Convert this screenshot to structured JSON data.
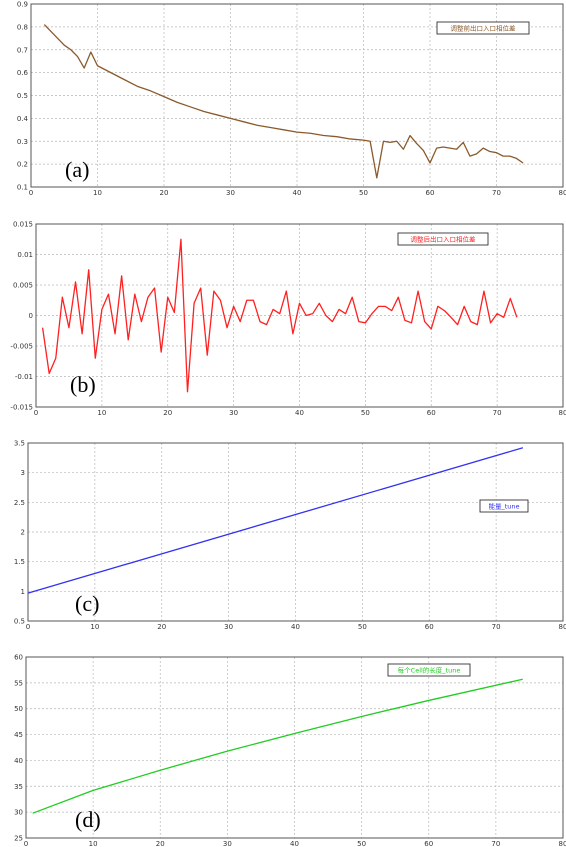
{
  "chart_data": [
    {
      "type": "line",
      "panel_label": "(a)",
      "legend": "调整前出口入口相位差",
      "legend_placement": "top-right",
      "xlim": [
        0,
        80
      ],
      "ylim": [
        0.1,
        0.9
      ],
      "xticks": [
        0,
        10,
        20,
        30,
        40,
        50,
        60,
        70,
        80
      ],
      "yticks": [
        0.1,
        0.2,
        0.3,
        0.4,
        0.5,
        0.6,
        0.7,
        0.8,
        0.9
      ],
      "grid": true,
      "color": "#8b5a2b",
      "series": [
        {
          "x": [
            2,
            3,
            4,
            5,
            6,
            7,
            8,
            9,
            10,
            12,
            14,
            16,
            18,
            20,
            22,
            24,
            26,
            28,
            30,
            32,
            34,
            36,
            38,
            40,
            42,
            44,
            46,
            48,
            50,
            51,
            52,
            53,
            54,
            55,
            56,
            57,
            58,
            59,
            60,
            61,
            62,
            63,
            64,
            65,
            66,
            67,
            68,
            69,
            70,
            71,
            72,
            73,
            74
          ],
          "y": [
            0.81,
            0.78,
            0.75,
            0.72,
            0.7,
            0.67,
            0.62,
            0.69,
            0.63,
            0.6,
            0.57,
            0.54,
            0.52,
            0.495,
            0.47,
            0.45,
            0.43,
            0.415,
            0.4,
            0.385,
            0.37,
            0.36,
            0.35,
            0.34,
            0.335,
            0.325,
            0.32,
            0.31,
            0.305,
            0.3,
            0.14,
            0.3,
            0.295,
            0.3,
            0.265,
            0.325,
            0.29,
            0.26,
            0.205,
            0.27,
            0.275,
            0.27,
            0.265,
            0.295,
            0.235,
            0.245,
            0.27,
            0.255,
            0.25,
            0.235,
            0.235,
            0.225,
            0.205
          ]
        }
      ]
    },
    {
      "type": "line",
      "panel_label": "(b)",
      "legend": "调整后出口入口相位差",
      "legend_placement": "top-right",
      "xlim": [
        0,
        80
      ],
      "ylim": [
        -0.015,
        0.015
      ],
      "xticks": [
        0,
        10,
        20,
        30,
        40,
        50,
        60,
        70,
        80
      ],
      "yticks": [
        -0.015,
        -0.01,
        -0.005,
        0,
        0.005,
        0.01,
        0.015
      ],
      "ytick_labels": [
        "-0.015",
        "-0.01",
        "-0.005",
        "0",
        "0.005",
        "0.01",
        "0.015"
      ],
      "grid": true,
      "color": "#ff2020",
      "series": [
        {
          "x": [
            1,
            2,
            3,
            4,
            5,
            6,
            7,
            8,
            9,
            10,
            11,
            12,
            13,
            14,
            15,
            16,
            17,
            18,
            19,
            20,
            21,
            22,
            23,
            24,
            25,
            26,
            27,
            28,
            29,
            30,
            31,
            32,
            33,
            34,
            35,
            36,
            37,
            38,
            39,
            40,
            41,
            42,
            43,
            44,
            45,
            46,
            47,
            48,
            49,
            50,
            51,
            52,
            53,
            54,
            55,
            56,
            57,
            58,
            59,
            60,
            61,
            62,
            63,
            64,
            65,
            66,
            67,
            68,
            69,
            70,
            71,
            72,
            73
          ],
          "y": [
            -0.002,
            -0.0095,
            -0.007,
            0.003,
            -0.002,
            0.0055,
            -0.003,
            0.0075,
            -0.007,
            0.001,
            0.0035,
            -0.003,
            0.0065,
            -0.004,
            0.0035,
            -0.001,
            0.003,
            0.0045,
            -0.006,
            0.003,
            0.0005,
            0.0125,
            -0.0125,
            0.002,
            0.0045,
            -0.0065,
            0.004,
            0.0025,
            -0.002,
            0.0015,
            -0.001,
            0.0025,
            0.0025,
            -0.001,
            -0.0015,
            0.001,
            0.0003,
            0.004,
            -0.003,
            0.002,
            0,
            0.0003,
            0.002,
            0,
            -0.001,
            0.001,
            0.0003,
            0.003,
            -0.001,
            -0.0012,
            0.0003,
            0.0015,
            0.0015,
            0.0008,
            0.003,
            -0.0008,
            -0.0012,
            0.004,
            -0.001,
            -0.0022,
            0.0015,
            0.0008,
            -0.0003,
            -0.0015,
            0.0015,
            -0.001,
            -0.0015,
            0.004,
            -0.0012,
            0.0003,
            -0.0003,
            0.0028,
            -0.0003
          ]
        }
      ]
    },
    {
      "type": "line",
      "panel_label": "(c)",
      "legend": "能量_tune",
      "legend_placement": "center-right",
      "xlim": [
        0,
        80
      ],
      "ylim": [
        0.5,
        3.5
      ],
      "xticks": [
        0,
        10,
        20,
        30,
        40,
        50,
        60,
        70,
        80
      ],
      "yticks": [
        0.5,
        1,
        1.5,
        2,
        2.5,
        3,
        3.5
      ],
      "grid": true,
      "color": "#3333ee",
      "series": [
        {
          "x": [
            0,
            74
          ],
          "y": [
            0.97,
            3.42
          ]
        }
      ]
    },
    {
      "type": "line",
      "panel_label": "(d)",
      "legend": "每个Cell的长度_tune",
      "legend_placement": "top-right",
      "xlim": [
        0,
        80
      ],
      "ylim": [
        25,
        60
      ],
      "xticks": [
        0,
        10,
        20,
        30,
        40,
        50,
        60,
        70,
        80
      ],
      "yticks": [
        25,
        30,
        35,
        40,
        45,
        50,
        55,
        60
      ],
      "grid": true,
      "color": "#22cc22",
      "series": [
        {
          "x": [
            1,
            10,
            20,
            30,
            40,
            50,
            60,
            74
          ],
          "y": [
            29.8,
            34.2,
            38.1,
            41.8,
            45.2,
            48.5,
            51.6,
            55.7
          ]
        }
      ]
    }
  ]
}
